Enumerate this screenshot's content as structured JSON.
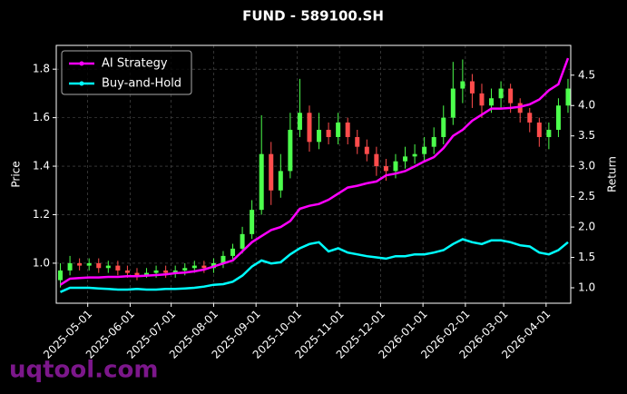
{
  "chart_data": {
    "type": "candlestick",
    "title": "FUND - 589100.SH",
    "y_label": "Price",
    "y2_label": "Return",
    "watermark": "uqtool.com",
    "x": [
      "2025-04-11",
      "2025-04-18",
      "2025-04-25",
      "2025-05-02",
      "2025-05-09",
      "2025-05-16",
      "2025-05-23",
      "2025-05-30",
      "2025-06-06",
      "2025-06-13",
      "2025-06-20",
      "2025-06-27",
      "2025-07-04",
      "2025-07-11",
      "2025-07-18",
      "2025-07-25",
      "2025-08-01",
      "2025-08-08",
      "2025-08-15",
      "2025-08-22",
      "2025-08-29",
      "2025-09-05",
      "2025-09-12",
      "2025-09-19",
      "2025-09-26",
      "2025-10-03",
      "2025-10-10",
      "2025-10-17",
      "2025-10-24",
      "2025-10-31",
      "2025-11-07",
      "2025-11-14",
      "2025-11-21",
      "2025-11-28",
      "2025-12-05",
      "2025-12-12",
      "2025-12-19",
      "2025-12-26",
      "2026-01-02",
      "2026-01-09",
      "2026-01-16",
      "2026-01-23",
      "2026-01-30",
      "2026-02-06",
      "2026-02-13",
      "2026-02-20",
      "2026-02-27",
      "2026-03-06",
      "2026-03-13",
      "2026-03-20",
      "2026-03-27",
      "2026-04-03",
      "2026-04-10",
      "2026-04-17"
    ],
    "open": [
      0.93,
      0.97,
      1.0,
      0.99,
      1.0,
      0.98,
      0.99,
      0.97,
      0.96,
      0.95,
      0.96,
      0.97,
      0.96,
      0.97,
      0.98,
      0.99,
      0.98,
      1.0,
      1.03,
      1.06,
      1.12,
      1.22,
      1.45,
      1.3,
      1.38,
      1.55,
      1.62,
      1.5,
      1.55,
      1.52,
      1.58,
      1.52,
      1.48,
      1.45,
      1.4,
      1.38,
      1.42,
      1.44,
      1.45,
      1.48,
      1.52,
      1.6,
      1.72,
      1.75,
      1.7,
      1.65,
      1.68,
      1.72,
      1.66,
      1.62,
      1.58,
      1.52,
      1.55,
      1.65
    ],
    "high": [
      1.0,
      1.03,
      1.02,
      1.02,
      1.02,
      1.01,
      1.01,
      0.99,
      0.98,
      0.98,
      0.99,
      0.99,
      0.99,
      1.0,
      1.01,
      1.01,
      1.02,
      1.05,
      1.08,
      1.15,
      1.26,
      1.61,
      1.5,
      1.45,
      1.62,
      1.76,
      1.65,
      1.62,
      1.58,
      1.62,
      1.6,
      1.55,
      1.51,
      1.48,
      1.43,
      1.45,
      1.48,
      1.49,
      1.52,
      1.56,
      1.65,
      1.83,
      1.84,
      1.78,
      1.74,
      1.72,
      1.75,
      1.74,
      1.68,
      1.64,
      1.6,
      1.58,
      1.68,
      1.76
    ],
    "low": [
      0.9,
      0.95,
      0.97,
      0.97,
      0.96,
      0.96,
      0.95,
      0.94,
      0.93,
      0.94,
      0.94,
      0.94,
      0.94,
      0.95,
      0.96,
      0.96,
      0.96,
      0.98,
      1.01,
      1.04,
      1.1,
      1.2,
      1.24,
      1.27,
      1.35,
      1.52,
      1.46,
      1.47,
      1.49,
      1.49,
      1.49,
      1.45,
      1.42,
      1.36,
      1.34,
      1.35,
      1.39,
      1.41,
      1.42,
      1.45,
      1.49,
      1.57,
      1.66,
      1.64,
      1.6,
      1.62,
      1.64,
      1.62,
      1.58,
      1.54,
      1.48,
      1.47,
      1.52,
      1.62
    ],
    "close": [
      0.97,
      1.0,
      0.99,
      1.0,
      0.98,
      0.99,
      0.97,
      0.96,
      0.95,
      0.96,
      0.97,
      0.96,
      0.97,
      0.98,
      0.99,
      0.98,
      1.0,
      1.03,
      1.06,
      1.12,
      1.22,
      1.45,
      1.3,
      1.38,
      1.55,
      1.62,
      1.5,
      1.55,
      1.52,
      1.58,
      1.52,
      1.48,
      1.45,
      1.4,
      1.38,
      1.42,
      1.44,
      1.45,
      1.48,
      1.52,
      1.6,
      1.72,
      1.75,
      1.7,
      1.65,
      1.68,
      1.72,
      1.66,
      1.62,
      1.58,
      1.52,
      1.55,
      1.65,
      1.72
    ],
    "up_color": "#4cff4c",
    "down_color": "#ff4c4c",
    "series": [
      {
        "name": "AI Strategy",
        "color": "#ff00ff",
        "axis": "y2",
        "values": [
          1.05,
          1.15,
          1.16,
          1.17,
          1.17,
          1.18,
          1.18,
          1.19,
          1.19,
          1.2,
          1.21,
          1.22,
          1.24,
          1.25,
          1.27,
          1.3,
          1.35,
          1.4,
          1.45,
          1.6,
          1.75,
          1.85,
          1.95,
          2.0,
          2.1,
          2.3,
          2.35,
          2.38,
          2.45,
          2.55,
          2.65,
          2.68,
          2.72,
          2.75,
          2.85,
          2.88,
          2.92,
          3.0,
          3.08,
          3.15,
          3.3,
          3.5,
          3.6,
          3.75,
          3.85,
          3.95,
          3.95,
          3.96,
          3.98,
          4.02,
          4.1,
          4.25,
          4.35,
          4.78
        ]
      },
      {
        "name": "Buy-and-Hold",
        "color": "#00ffff",
        "axis": "y2",
        "values": [
          0.93,
          1.0,
          1.0,
          1.0,
          0.99,
          0.98,
          0.97,
          0.97,
          0.98,
          0.97,
          0.97,
          0.98,
          0.98,
          0.99,
          1.0,
          1.02,
          1.05,
          1.06,
          1.1,
          1.2,
          1.35,
          1.45,
          1.4,
          1.42,
          1.55,
          1.65,
          1.72,
          1.75,
          1.6,
          1.65,
          1.58,
          1.55,
          1.52,
          1.5,
          1.48,
          1.52,
          1.52,
          1.55,
          1.55,
          1.58,
          1.62,
          1.72,
          1.8,
          1.75,
          1.72,
          1.78,
          1.78,
          1.75,
          1.7,
          1.68,
          1.58,
          1.55,
          1.62,
          1.75
        ]
      }
    ],
    "xlim": [
      "2025-04-08",
      "2026-04-19"
    ],
    "xticks": [
      "2025-05-01",
      "2025-06-01",
      "2025-07-01",
      "2025-08-01",
      "2025-09-01",
      "2025-10-01",
      "2025-11-01",
      "2025-12-01",
      "2026-01-01",
      "2026-02-01",
      "2026-03-01",
      "2026-04-01"
    ],
    "ylim": [
      0.835,
      1.898
    ],
    "yticks": [
      {
        "value": 1.0,
        "label": "1.0"
      },
      1.2,
      1.4,
      1.6,
      1.8
    ],
    "y2lim": [
      0.746,
      4.99
    ],
    "y2ticks": [
      {
        "value": 1.0,
        "label": "1.0"
      },
      1.5,
      {
        "value": 2.0,
        "label": "2.0"
      },
      2.5,
      {
        "value": 3.0,
        "label": "3.0"
      },
      3.5,
      {
        "value": 4.0,
        "label": "4.0"
      },
      4.5
    ],
    "grid": true,
    "legend": "upper left"
  }
}
